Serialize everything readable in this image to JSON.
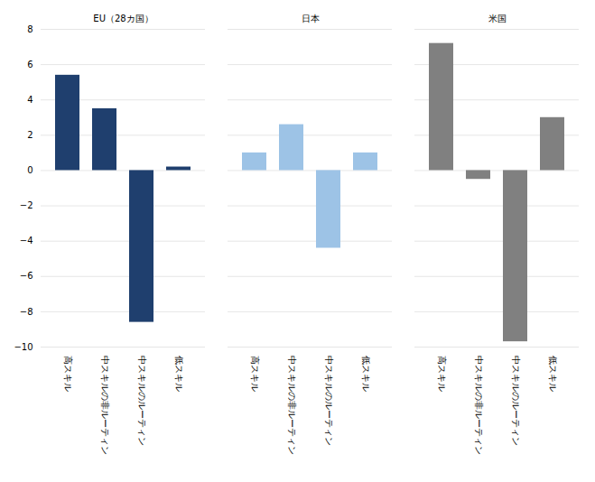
{
  "chart_data": {
    "type": "bar",
    "categories": [
      "高スキル",
      "中スキルの非ルーティン",
      "中スキルのルーティン",
      "低スキル"
    ],
    "series": [
      {
        "name": "EU（28カ国）",
        "color": "#1F3F6E",
        "values": [
          5.4,
          3.5,
          -8.6,
          0.2
        ]
      },
      {
        "name": "日本",
        "color": "#9DC3E6",
        "values": [
          1.0,
          2.6,
          -4.4,
          1.0
        ]
      },
      {
        "name": "米国",
        "color": "#808080",
        "values": [
          7.2,
          -0.5,
          -9.7,
          3.0
        ]
      }
    ],
    "ylim": [
      -10,
      8
    ],
    "yticks": [
      -10,
      -8,
      -6,
      -4,
      -2,
      0,
      2,
      4,
      6,
      8
    ],
    "grid": true
  }
}
